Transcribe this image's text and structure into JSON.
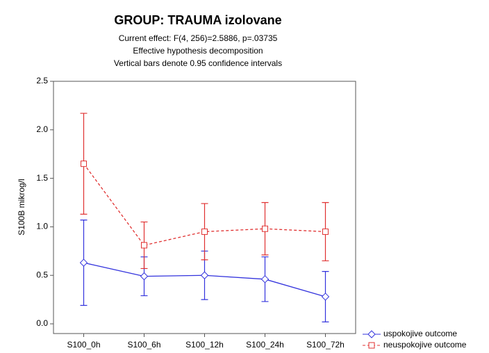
{
  "chart_data": {
    "type": "line",
    "title": "GROUP: TRAUMA izolovane",
    "subtitle": [
      "Current effect: F(4, 256)=2.5886, p=.03735",
      "Effective hypothesis decomposition",
      "Vertical bars denote 0.95 confidence intervals"
    ],
    "y_label": "S100B mikrog/l",
    "categories": [
      "S100_0h",
      "S100_6h",
      "S100_12h",
      "S100_24h",
      "S100_72h"
    ],
    "series": [
      {
        "name": "uspokojive outcome",
        "color": "#3333dd",
        "marker": "diamond",
        "dash": "solid",
        "values": [
          0.63,
          0.49,
          0.5,
          0.46,
          0.28
        ],
        "errors": [
          0.44,
          0.2,
          0.25,
          0.23,
          0.26
        ]
      },
      {
        "name": "neuspokojive outcome",
        "color": "#e03030",
        "marker": "square",
        "dash": "dashed",
        "values": [
          1.65,
          0.81,
          0.95,
          0.98,
          0.95
        ],
        "errors": [
          0.52,
          0.24,
          0.29,
          0.27,
          0.3
        ]
      }
    ],
    "ylim": [
      -0.1,
      2.5
    ],
    "yticks": [
      {
        "value": 0,
        "label": "0.0"
      },
      0.5,
      {
        "value": 1,
        "label": "1.0"
      },
      1.5,
      {
        "value": 2,
        "label": "2.0"
      },
      2.5
    ],
    "grid": false,
    "legend": "outside-bottom-right"
  }
}
